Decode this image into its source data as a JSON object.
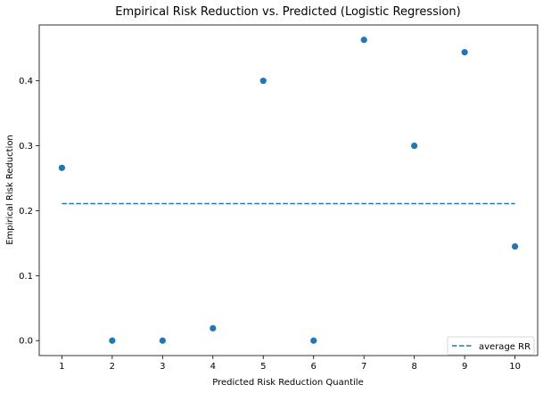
{
  "chart_data": {
    "type": "scatter",
    "title": "Empirical Risk Reduction vs. Predicted (Logistic Regression)",
    "xlabel": "Predicted Risk Reduction Quantile",
    "ylabel": "Empirical Risk Reduction",
    "x": [
      1,
      2,
      3,
      4,
      5,
      6,
      7,
      8,
      9,
      10
    ],
    "series": [
      {
        "values": [
          0.266,
          0.0,
          0.0,
          0.019,
          0.4,
          0.0,
          0.463,
          0.3,
          0.444,
          0.145
        ],
        "color": "#1f77b4"
      }
    ],
    "reference_line": {
      "name": "average RR",
      "y": 0.211,
      "x_range": [
        1,
        10
      ],
      "style": "dashed",
      "color": "#1f77b4"
    },
    "xticks": [
      "1",
      "2",
      "3",
      "4",
      "5",
      "6",
      "7",
      "8",
      "9",
      "10"
    ],
    "yticks": [
      "0.0",
      "0.1",
      "0.2",
      "0.3",
      "0.4"
    ],
    "ytick_values": [
      0.0,
      0.1,
      0.2,
      0.3,
      0.4
    ],
    "xlim": [
      0.55,
      10.45
    ],
    "ylim": [
      -0.023,
      0.486
    ],
    "grid": false,
    "legend_position": "lower-right"
  }
}
